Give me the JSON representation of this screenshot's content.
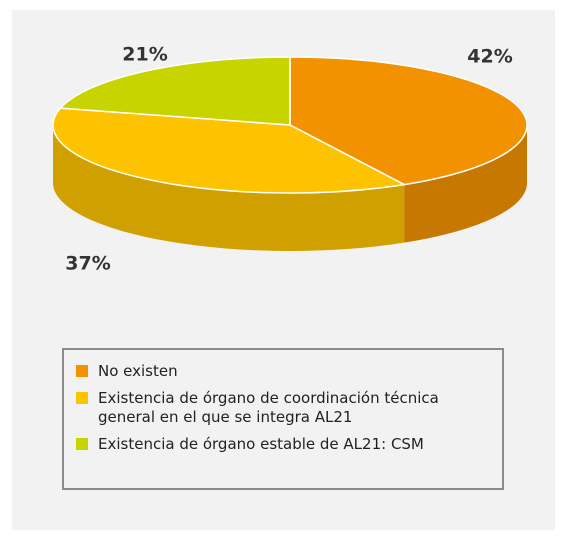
{
  "chart_data": {
    "type": "pie",
    "categories": [
      "No existen",
      "Existencia de órgano de coordinación técnica general en el que se integra AL21",
      "Existencia de órgano estable de AL21: CSM"
    ],
    "values": [
      42,
      37,
      21
    ],
    "value_labels": [
      "42%",
      "37%",
      "21%"
    ],
    "colors": [
      "#f39200",
      "#fdc300",
      "#c8d400"
    ],
    "legend": "bottom"
  }
}
